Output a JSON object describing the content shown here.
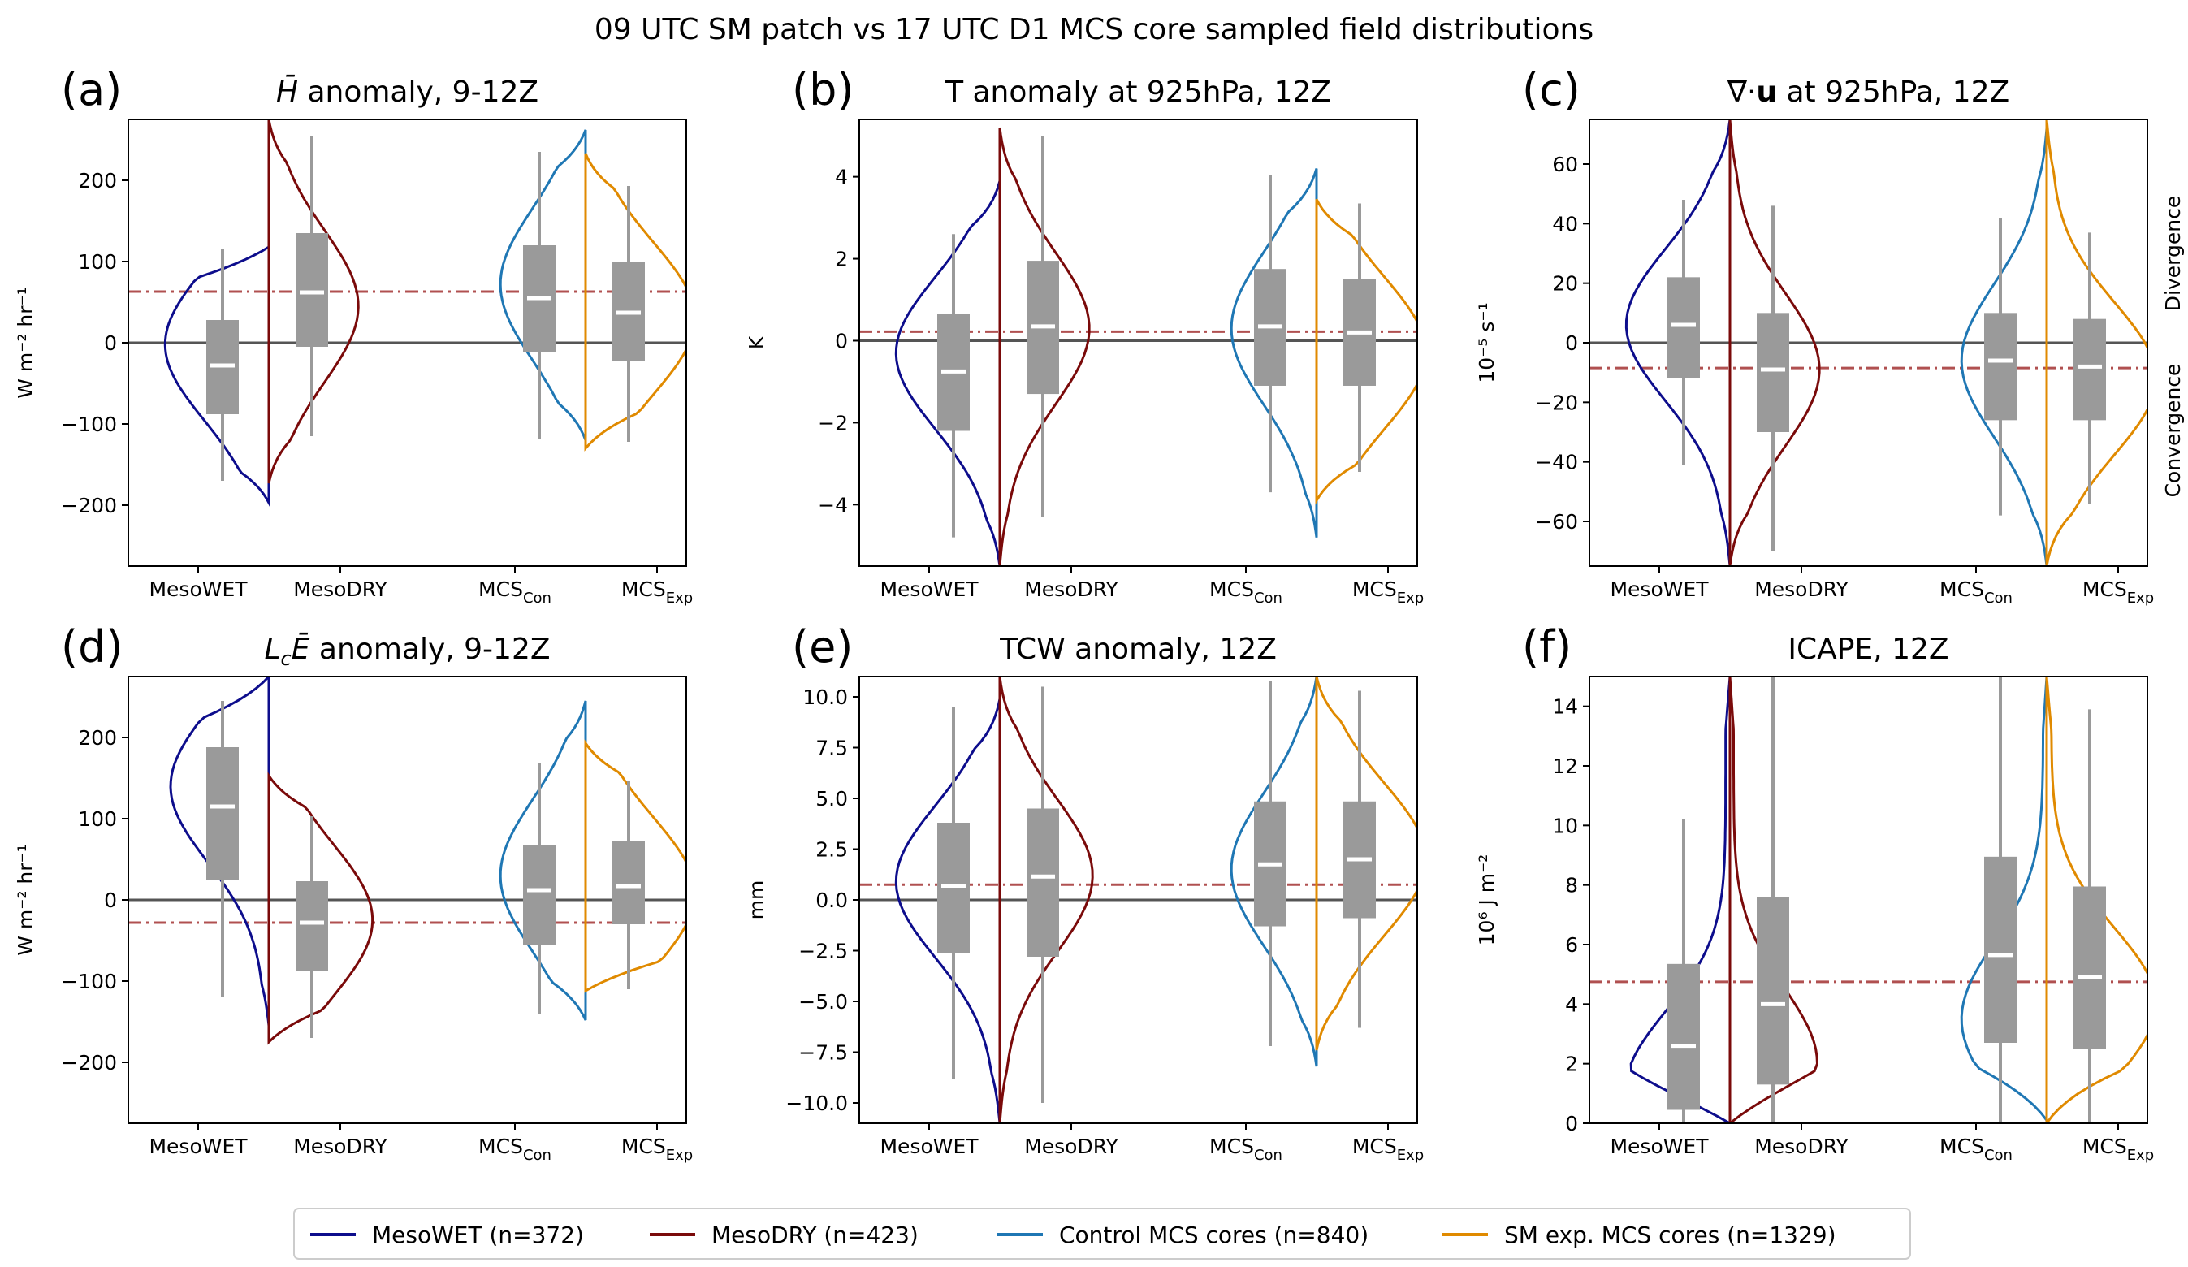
{
  "figure": {
    "title": "09 UTC SM patch vs 17 UTC D1 MCS core sampled field distributions",
    "categories": [
      {
        "main": "MesoWET",
        "sub": ""
      },
      {
        "main": "MesoDRY",
        "sub": ""
      },
      {
        "main": "MCS",
        "sub": "Con"
      },
      {
        "main": "MCS",
        "sub": "Exp"
      }
    ],
    "colors": {
      "wet": "#0d0d8c",
      "dry": "#7a0a0a",
      "con": "#1f77b4",
      "exp": "#e08a00",
      "box": "#9a9a9a",
      "median": "#ffffff",
      "zero": "#555555",
      "ref": "#b05050"
    },
    "legend": [
      {
        "label": "MesoWET (n=372)",
        "color": "#0d0d8c"
      },
      {
        "label": "MesoDRY (n=423)",
        "color": "#7a0a0a"
      },
      {
        "label": "Control MCS cores (n=840)",
        "color": "#1f77b4"
      },
      {
        "label": "SM exp. MCS cores (n=1329)",
        "color": "#e08a00"
      }
    ],
    "side_labels": {
      "top": "Divergence",
      "bottom": "Convergence"
    }
  },
  "chart_data": [
    {
      "panel": "(a)",
      "type": "violin",
      "title": "H̄ anomaly, 9-12Z",
      "ylabel": "W m⁻² hr⁻¹",
      "ylim": [
        -275,
        275
      ],
      "yticks": [
        -200,
        -100,
        0,
        100,
        200
      ],
      "tick_labels": [
        "−200",
        "−100",
        "0",
        "100",
        "200"
      ],
      "zero_line": 0,
      "ref_line": 63,
      "series": [
        {
          "name": "MesoWET",
          "box": {
            "whislo": -170,
            "q1": -88,
            "med": -28,
            "q3": 28,
            "whishi": 115
          },
          "kde": {
            "range": [
              -197,
              118
            ],
            "peak": -2,
            "width": 0.95
          }
        },
        {
          "name": "MesoDRY",
          "box": {
            "whislo": -115,
            "q1": -5,
            "med": 62,
            "q3": 135,
            "whishi": 255
          },
          "kde": {
            "range": [
              -173,
              275
            ],
            "peak": 45,
            "width": 0.82
          }
        },
        {
          "name": "Control MCS cores",
          "box": {
            "whislo": -118,
            "q1": -12,
            "med": 55,
            "q3": 120,
            "whishi": 235
          },
          "kde": {
            "range": [
              -120,
              262
            ],
            "peak": 72,
            "width": 0.78
          }
        },
        {
          "name": "SM exp. MCS cores",
          "box": {
            "whislo": -122,
            "q1": -22,
            "med": 37,
            "q3": 100,
            "whishi": 193
          },
          "kde": {
            "range": [
              -130,
              233
            ],
            "peak": 30,
            "width": 1.0
          }
        }
      ]
    },
    {
      "panel": "(b)",
      "type": "violin",
      "title": "T anomaly at 925hPa, 12Z",
      "ylabel": "K",
      "ylim": [
        -5.5,
        5.4
      ],
      "yticks": [
        -4,
        -2,
        0,
        2,
        4
      ],
      "tick_labels": [
        "−4",
        "−2",
        "0",
        "2",
        "4"
      ],
      "zero_line": 0,
      "ref_line": 0.22,
      "series": [
        {
          "name": "MesoWET",
          "box": {
            "whislo": -4.8,
            "q1": -2.2,
            "med": -0.75,
            "q3": 0.65,
            "whishi": 2.6
          },
          "kde": {
            "range": [
              -5.5,
              3.9
            ],
            "peak": -0.3,
            "width": 0.95
          }
        },
        {
          "name": "MesoDRY",
          "box": {
            "whislo": -4.3,
            "q1": -1.3,
            "med": 0.35,
            "q3": 1.95,
            "whishi": 5.0
          },
          "kde": {
            "range": [
              -5.5,
              5.2
            ],
            "peak": 0.3,
            "width": 0.82
          }
        },
        {
          "name": "Control MCS cores",
          "box": {
            "whislo": -3.7,
            "q1": -1.1,
            "med": 0.35,
            "q3": 1.75,
            "whishi": 4.05
          },
          "kde": {
            "range": [
              -4.8,
              4.2
            ],
            "peak": 0.3,
            "width": 0.78
          }
        },
        {
          "name": "SM exp. MCS cores",
          "box": {
            "whislo": -3.2,
            "q1": -1.1,
            "med": 0.2,
            "q3": 1.5,
            "whishi": 3.35
          },
          "kde": {
            "range": [
              -3.9,
              3.45
            ],
            "peak": -0.3,
            "width": 1.0
          }
        }
      ]
    },
    {
      "panel": "(c)",
      "type": "violin",
      "title": "∇·u at 925hPa, 12Z",
      "ylabel": "10⁻⁵ s⁻¹",
      "ylim": [
        -75,
        75
      ],
      "yticks": [
        -60,
        -40,
        -20,
        0,
        20,
        40,
        60
      ],
      "tick_labels": [
        "−60",
        "−40",
        "−20",
        "0",
        "20",
        "40",
        "60"
      ],
      "zero_line": 0,
      "ref_line": -8.5,
      "series": [
        {
          "name": "MesoWET",
          "box": {
            "whislo": -41,
            "q1": -12,
            "med": 6,
            "q3": 22,
            "whishi": 48
          },
          "kde": {
            "range": [
              -75,
              75
            ],
            "peak": 6,
            "width": 0.95
          }
        },
        {
          "name": "MesoDRY",
          "box": {
            "whislo": -70,
            "q1": -30,
            "med": -9,
            "q3": 10,
            "whishi": 46
          },
          "kde": {
            "range": [
              -75,
              75
            ],
            "peak": -9,
            "width": 0.82
          }
        },
        {
          "name": "Control MCS cores",
          "box": {
            "whislo": -58,
            "q1": -26,
            "med": -6,
            "q3": 10,
            "whishi": 42
          },
          "kde": {
            "range": [
              -75,
              72
            ],
            "peak": -6,
            "width": 0.78
          }
        },
        {
          "name": "SM exp. MCS cores",
          "box": {
            "whislo": -54,
            "q1": -26,
            "med": -8,
            "q3": 8,
            "whishi": 37
          },
          "kde": {
            "range": [
              -75,
              75
            ],
            "peak": -12,
            "width": 1.0
          }
        }
      ]
    },
    {
      "panel": "(d)",
      "type": "violin",
      "title": "LcĒ anomaly, 9-12Z",
      "ylabel": "W m⁻² hr⁻¹",
      "ylim": [
        -275,
        275
      ],
      "yticks": [
        -200,
        -100,
        0,
        100,
        200
      ],
      "tick_labels": [
        "−200",
        "−100",
        "0",
        "100",
        "200"
      ],
      "zero_line": 0,
      "ref_line": -28,
      "series": [
        {
          "name": "MesoWET",
          "box": {
            "whislo": -120,
            "q1": 25,
            "med": 115,
            "q3": 188,
            "whishi": 245
          },
          "kde": {
            "range": [
              -155,
              275
            ],
            "peak": 140,
            "width": 0.9
          }
        },
        {
          "name": "MesoDRY",
          "box": {
            "whislo": -170,
            "q1": -88,
            "med": -28,
            "q3": 23,
            "whishi": 103
          },
          "kde": {
            "range": [
              -175,
              153
            ],
            "peak": -25,
            "width": 0.95
          }
        },
        {
          "name": "Control MCS cores",
          "box": {
            "whislo": -140,
            "q1": -55,
            "med": 12,
            "q3": 68,
            "whishi": 168
          },
          "kde": {
            "range": [
              -148,
              245
            ],
            "peak": 30,
            "width": 0.78
          }
        },
        {
          "name": "SM exp. MCS cores",
          "box": {
            "whislo": -110,
            "q1": -30,
            "med": 17,
            "q3": 72,
            "whishi": 146
          },
          "kde": {
            "range": [
              -112,
              193
            ],
            "peak": 8,
            "width": 1.0
          }
        }
      ]
    },
    {
      "panel": "(e)",
      "type": "violin",
      "title": "TCW anomaly, 12Z",
      "ylabel": "mm",
      "ylim": [
        -11,
        11
      ],
      "yticks": [
        -10.0,
        -7.5,
        -5.0,
        -2.5,
        0.0,
        2.5,
        5.0,
        7.5,
        10.0
      ],
      "tick_labels": [
        "−10.0",
        "−7.5",
        "−5.0",
        "−2.5",
        "0.0",
        "2.5",
        "5.0",
        "7.5",
        "10.0"
      ],
      "zero_line": 0,
      "ref_line": 0.75,
      "series": [
        {
          "name": "MesoWET",
          "box": {
            "whislo": -8.8,
            "q1": -2.6,
            "med": 0.7,
            "q3": 3.8,
            "whishi": 9.5
          },
          "kde": {
            "range": [
              -11,
              9.9
            ],
            "peak": 0.9,
            "width": 0.95
          }
        },
        {
          "name": "MesoDRY",
          "box": {
            "whislo": -10.0,
            "q1": -2.8,
            "med": 1.15,
            "q3": 4.5,
            "whishi": 10.5
          },
          "kde": {
            "range": [
              -11,
              11
            ],
            "peak": 1.2,
            "width": 0.85
          }
        },
        {
          "name": "Control MCS cores",
          "box": {
            "whislo": -7.2,
            "q1": -1.3,
            "med": 1.75,
            "q3": 4.85,
            "whishi": 10.8
          },
          "kde": {
            "range": [
              -8.2,
              11
            ],
            "peak": 1.5,
            "width": 0.78
          }
        },
        {
          "name": "SM exp. MCS cores",
          "box": {
            "whislo": -6.3,
            "q1": -0.9,
            "med": 2.0,
            "q3": 4.85,
            "whishi": 10.3
          },
          "kde": {
            "range": [
              -7.4,
              11
            ],
            "peak": 2.0,
            "width": 1.0
          }
        }
      ]
    },
    {
      "panel": "(f)",
      "type": "violin",
      "title": "ICAPE, 12Z",
      "ylabel": "10⁶ J m⁻²",
      "ylim": [
        0,
        15
      ],
      "yticks": [
        0,
        2,
        4,
        6,
        8,
        10,
        12,
        14
      ],
      "tick_labels": [
        "0",
        "2",
        "4",
        "6",
        "8",
        "10",
        "12",
        "14"
      ],
      "zero_line": null,
      "ref_line": 4.75,
      "series": [
        {
          "name": "MesoWET",
          "box": {
            "whislo": 0.0,
            "q1": 0.45,
            "med": 2.6,
            "q3": 5.35,
            "whishi": 10.2
          },
          "kde": {
            "range": [
              0,
              15
            ],
            "peak": 1.2,
            "width": 0.95
          }
        },
        {
          "name": "MesoDRY",
          "box": {
            "whislo": 0.0,
            "q1": 1.3,
            "med": 4.0,
            "q3": 7.6,
            "whishi": 15
          },
          "kde": {
            "range": [
              0,
              15
            ],
            "peak": 2.0,
            "width": 0.8
          }
        },
        {
          "name": "Control MCS cores",
          "box": {
            "whislo": 0.0,
            "q1": 2.7,
            "med": 5.65,
            "q3": 8.95,
            "whishi": 15
          },
          "kde": {
            "range": [
              0.1,
              15
            ],
            "peak": 3.5,
            "width": 0.78
          }
        },
        {
          "name": "SM exp. MCS cores",
          "box": {
            "whislo": 0.0,
            "q1": 2.5,
            "med": 4.9,
            "q3": 7.95,
            "whishi": 13.9
          },
          "kde": {
            "range": [
              0,
              15
            ],
            "peak": 4.0,
            "width": 1.0
          }
        }
      ]
    }
  ]
}
